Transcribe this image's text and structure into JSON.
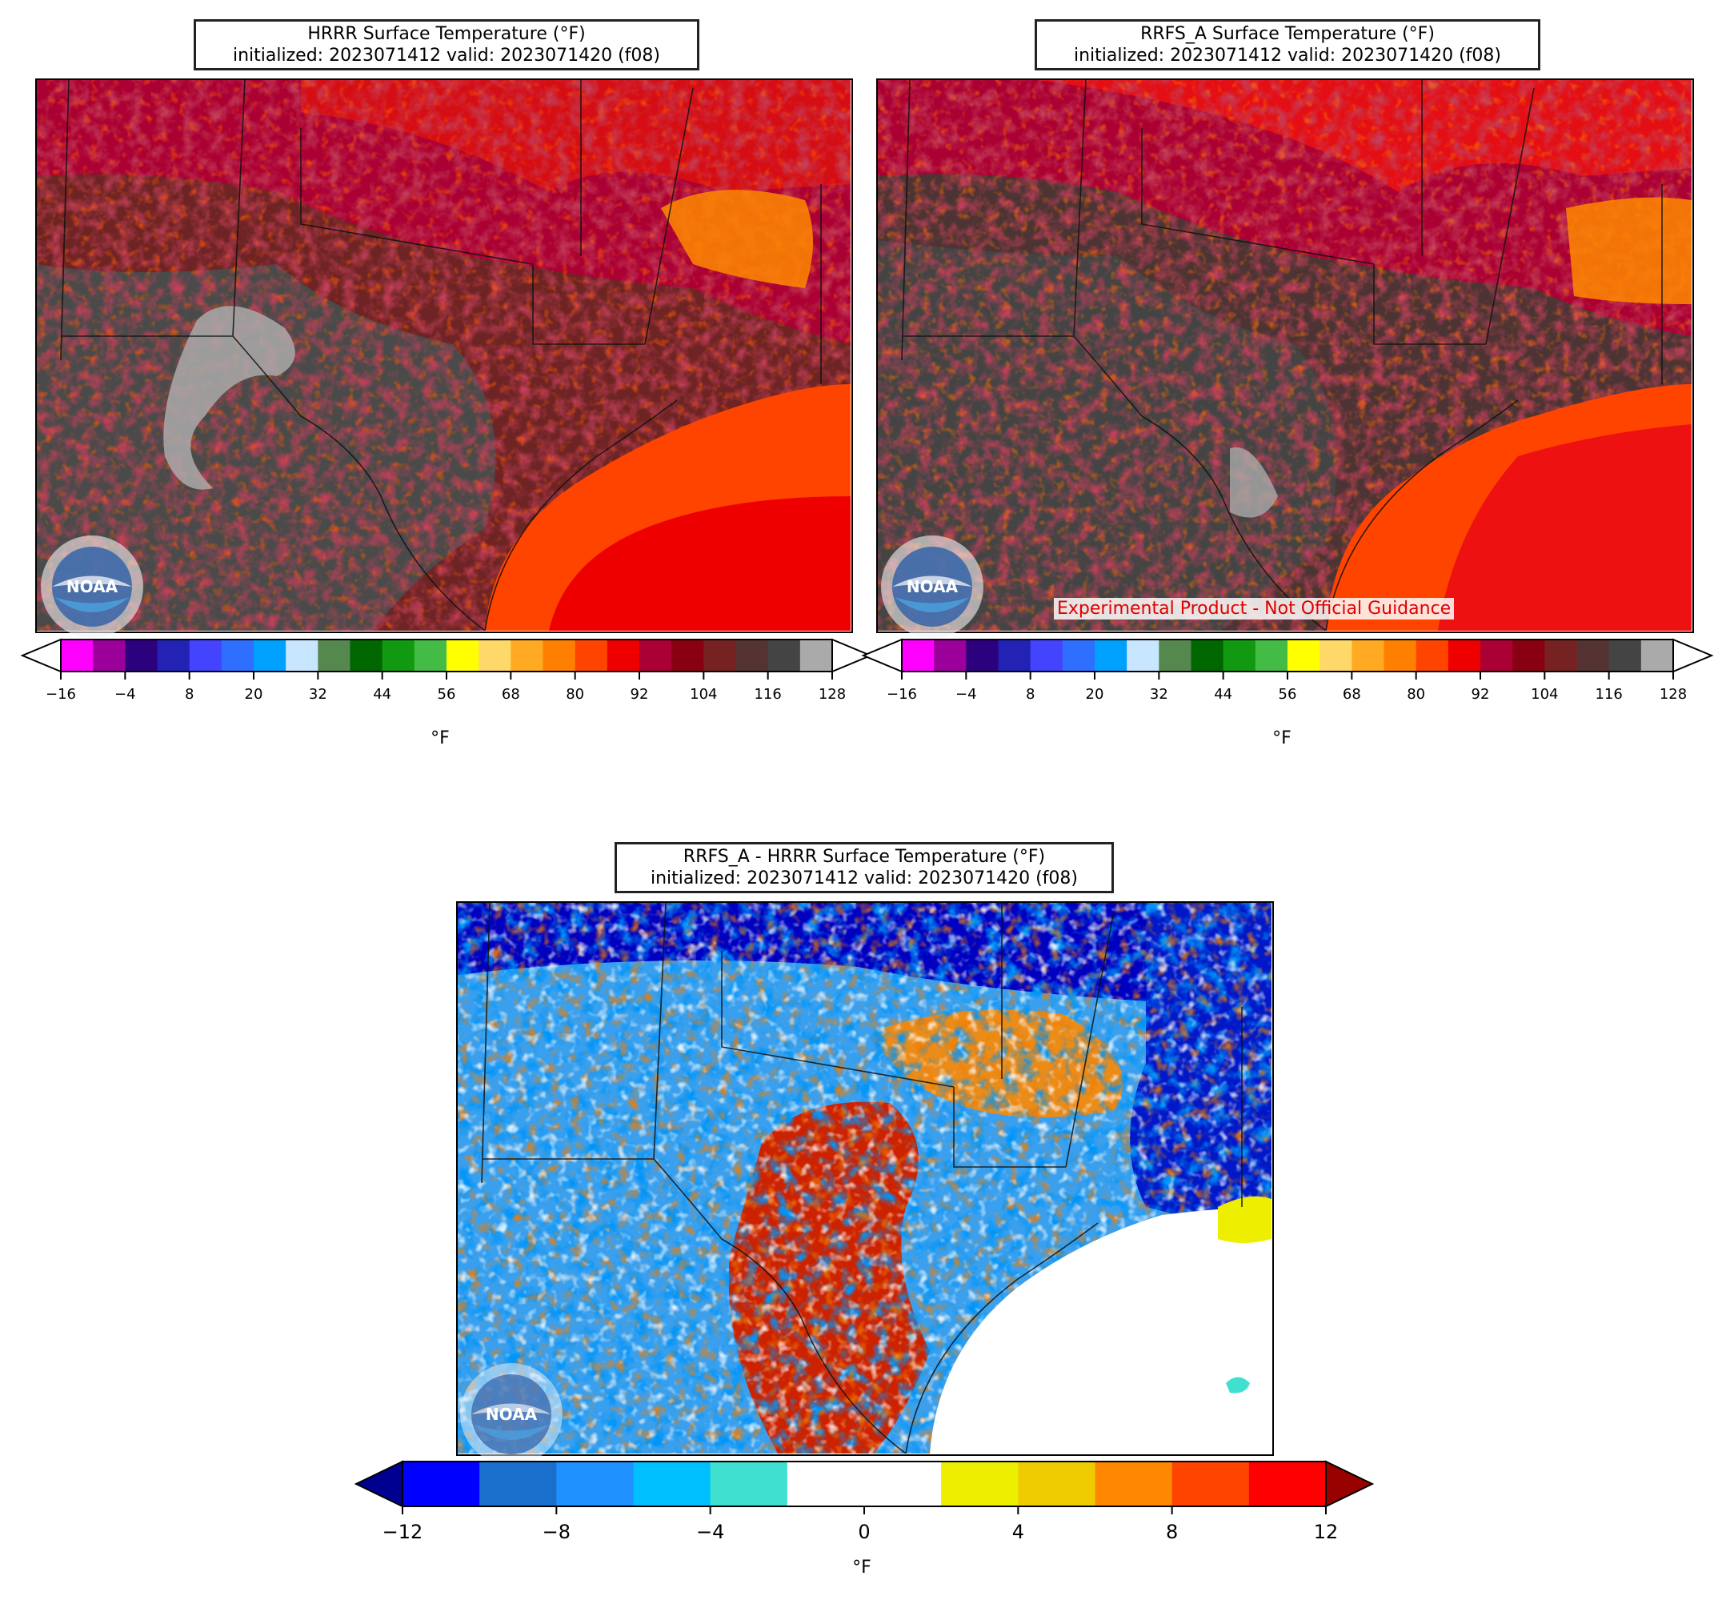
{
  "panels": {
    "hrrr": {
      "title_line1": "HRRR Surface Temperature (°F)",
      "title_line2": "initialized: 2023071412 valid: 2023071420 (f08)"
    },
    "rrfs": {
      "title_line1": "RRFS_A Surface Temperature (°F)",
      "title_line2": "initialized: 2023071412 valid: 2023071420 (f08)",
      "watermark": "Experimental Product - Not Official Guidance"
    },
    "diff": {
      "title_line1": "RRFS_A - HRRR Surface Temperature (°F)",
      "title_line2": "initialized: 2023071412 valid: 2023071420 (f08)"
    }
  },
  "logo": {
    "text": "NOAA",
    "icon": "noaa-logo-icon"
  },
  "temp_colorbar": {
    "unit": "°F",
    "ticks": [
      "−16",
      "−4",
      "8",
      "20",
      "32",
      "44",
      "56",
      "68",
      "80",
      "92",
      "104",
      "116",
      "128"
    ],
    "colors": [
      "#ff00ff",
      "#9b009b",
      "#2d007d",
      "#2222b4",
      "#4444ff",
      "#2f6fff",
      "#00a0ff",
      "#c8e6ff",
      "#55884f",
      "#006600",
      "#119911",
      "#44bb44",
      "#ffff00",
      "#ffd86a",
      "#ffaa22",
      "#ff7f00",
      "#ff4400",
      "#ee0000",
      "#aa0033",
      "#880011",
      "#772222",
      "#553333",
      "#444444",
      "#aaaaaa"
    ],
    "under_color": "#ffffff",
    "over_color": "#ffffff"
  },
  "diff_colorbar": {
    "unit": "°F",
    "ticks": [
      "−12",
      "−8",
      "−4",
      "0",
      "4",
      "8",
      "12"
    ],
    "colors": [
      "#0000ff",
      "#1b6fcc",
      "#1e90ff",
      "#00bfff",
      "#40e0d0",
      "#ffffff",
      "#ffffff",
      "#eeee00",
      "#eecc00",
      "#ff8800",
      "#ff4400",
      "#ff0000"
    ],
    "under_color": "#000090",
    "over_color": "#990000"
  }
}
